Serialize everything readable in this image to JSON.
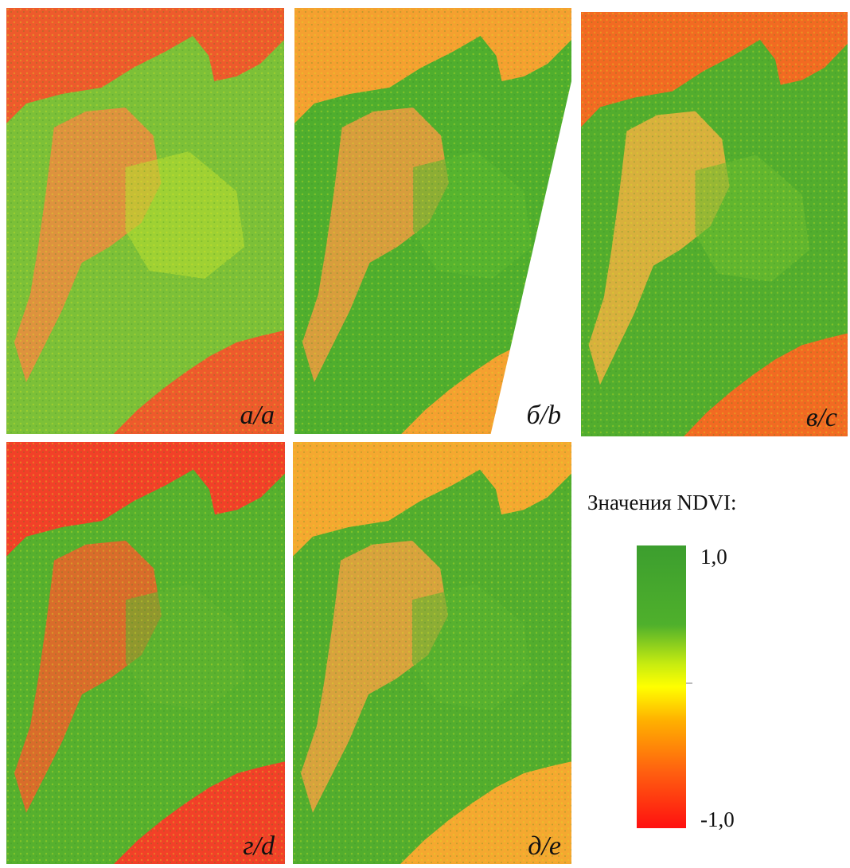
{
  "panels": [
    {
      "label": "а/a"
    },
    {
      "label": "б/b"
    },
    {
      "label": "в/c"
    },
    {
      "label": "г/d"
    },
    {
      "label": "д/e"
    }
  ],
  "legend": {
    "title": "Значения NDVI:",
    "max": "1,0",
    "min": "-1,0"
  }
}
